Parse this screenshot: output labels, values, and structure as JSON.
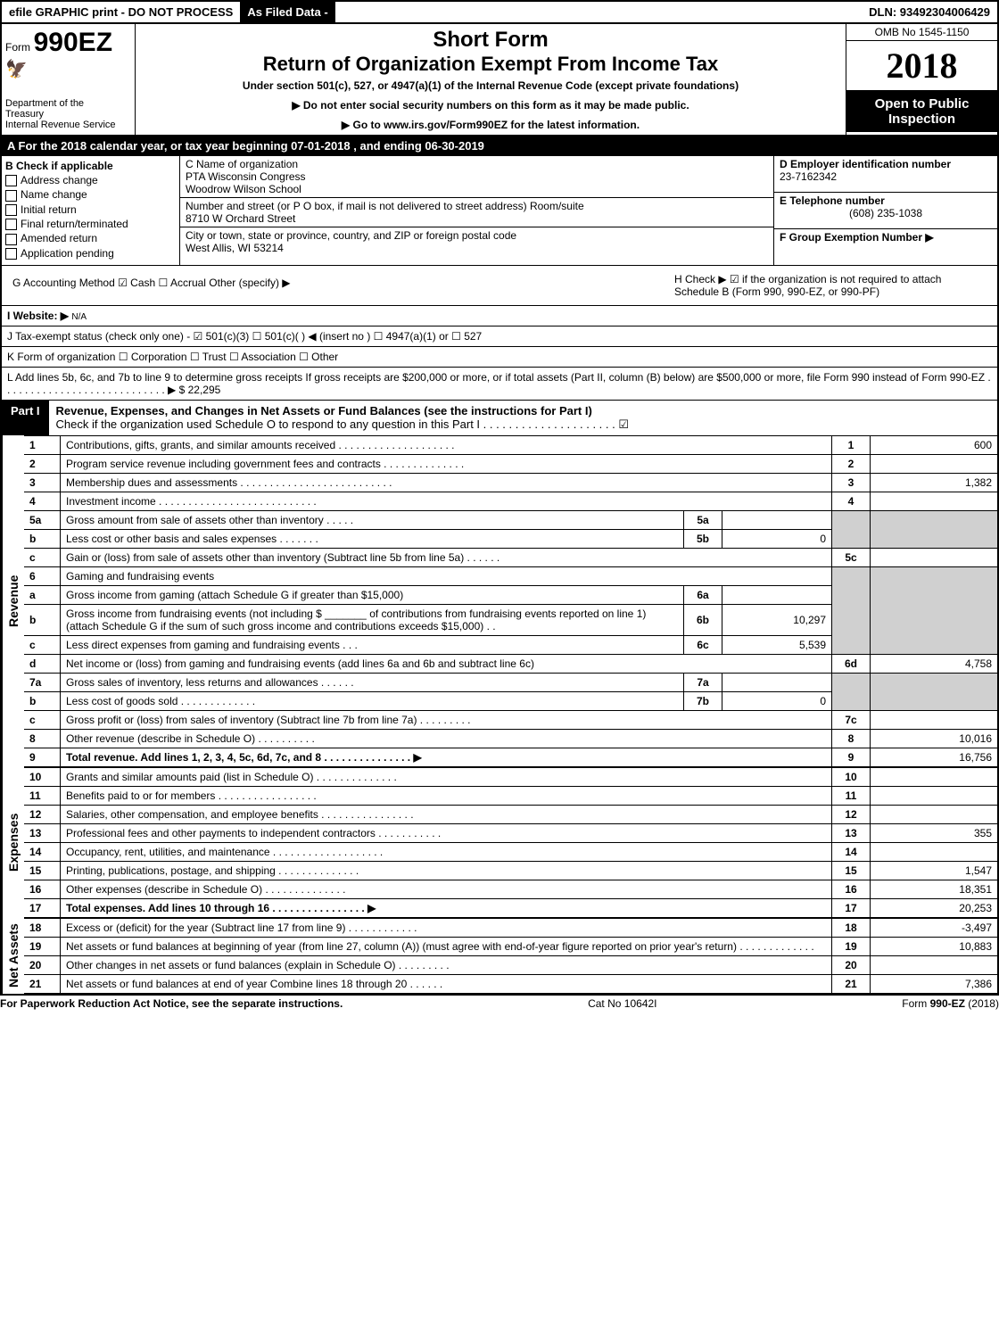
{
  "top_bar": {
    "efile": "efile GRAPHIC print - DO NOT PROCESS",
    "asfiled": "As Filed Data -",
    "dln": "DLN: 93492304006429"
  },
  "header": {
    "form_prefix": "Form",
    "form_no": "990EZ",
    "short": "Short Form",
    "title": "Return of Organization Exempt From Income Tax",
    "sub": "Under section 501(c), 527, or 4947(a)(1) of the Internal Revenue Code (except private foundations)",
    "sub2": "▶ Do not enter social security numbers on this form as it may be made public.",
    "sub3": "▶ Go to www.irs.gov/Form990EZ for the latest information.",
    "dept1": "Department of the",
    "dept2": "Treasury",
    "dept3": "Internal Revenue Service",
    "omb": "OMB No 1545-1150",
    "year": "2018",
    "open": "Open to Public Inspection"
  },
  "row_a": "A  For the 2018 calendar year, or tax year beginning 07-01-2018         , and ending 06-30-2019",
  "col_b": {
    "title": "B Check if applicable",
    "items": [
      "Address change",
      "Name change",
      "Initial return",
      "Final return/terminated",
      "Amended return",
      "Application pending"
    ]
  },
  "col_c": {
    "c_label": "C Name of organization",
    "name1": "PTA Wisconsin Congress",
    "name2": "Woodrow Wilson School",
    "addr_label": "Number and street (or P O  box, if mail is not delivered to street address)  Room/suite",
    "addr": "8710 W Orchard Street",
    "city_label": "City or town, state or province, country, and ZIP or foreign postal code",
    "city": "West Allis, WI  53214"
  },
  "col_def": {
    "d_label": "D Employer identification number",
    "d_val": "23-7162342",
    "e_label": "E Telephone number",
    "e_val": "(608) 235-1038",
    "f_label": "F Group Exemption Number   ▶"
  },
  "gh": {
    "g_label": "G Accounting Method    ☑ Cash   ☐ Accrual   Other (specify) ▶",
    "h_label": "H   Check ▶  ☑ if the organization is not required to attach Schedule B (Form 990, 990-EZ, or 990-PF)",
    "i_label": "I Website: ▶",
    "i_val": "N/A",
    "j_label": "J Tax-exempt status (check only one) - ☑ 501(c)(3)   ☐ 501(c)(  ) ◀ (insert no )  ☐ 4947(a)(1) or  ☐ 527",
    "k_label": "K Form of organization     ☐ Corporation   ☐ Trust   ☐ Association   ☐ Other",
    "l_label": "L Add lines 5b, 6c, and 7b to line 9 to determine gross receipts  If gross receipts are $200,000 or more, or if total assets (Part II, column (B) below) are $500,000 or more, file Form 990 instead of Form 990-EZ  . . . . . . . . . . . . . . . . . . . . . . . . . . . .  ▶ $ 22,295"
  },
  "part1": {
    "num": "Part I",
    "title": "Revenue, Expenses, and Changes in Net Assets or Fund Balances (see the instructions for Part I)",
    "sub": "Check if the organization used Schedule O to respond to any question in this Part I . . . . . . . . . . . . . . . . . . . . .  ☑"
  },
  "revenue_label": "Revenue",
  "expenses_label": "Expenses",
  "netassets_label": "Net Assets",
  "lines": {
    "l1": {
      "n": "1",
      "desc": "Contributions, gifts, grants, and similar amounts received . . . . . . . . . . . . . . . . . . . .",
      "rn": "1",
      "v": "600"
    },
    "l2": {
      "n": "2",
      "desc": "Program service revenue including government fees and contracts . . . . . . . . . . . . . .",
      "rn": "2",
      "v": ""
    },
    "l3": {
      "n": "3",
      "desc": "Membership dues and assessments . . . . . . . . . . . . . . . . . . . . . . . . . .",
      "rn": "3",
      "v": "1,382"
    },
    "l4": {
      "n": "4",
      "desc": "Investment income . . . . . . . . . . . . . . . . . . . . . . . . . . .",
      "rn": "4",
      "v": ""
    },
    "l5a": {
      "n": "5a",
      "desc": "Gross amount from sale of assets other than inventory . . . . .",
      "sn": "5a",
      "sv": ""
    },
    "l5b": {
      "n": "b",
      "desc": "Less  cost or other basis and sales expenses . . . . . . .",
      "sn": "5b",
      "sv": "0"
    },
    "l5c": {
      "n": "c",
      "desc": "Gain or (loss) from sale of assets other than inventory (Subtract line 5b from line 5a) . . . . . .",
      "rn": "5c",
      "v": ""
    },
    "l6": {
      "n": "6",
      "desc": "Gaming and fundraising events"
    },
    "l6a": {
      "n": "a",
      "desc": "Gross income from gaming (attach Schedule G if greater than $15,000)",
      "sn": "6a",
      "sv": ""
    },
    "l6b": {
      "n": "b",
      "desc": "Gross income from fundraising events (not including $ _______ of contributions from fundraising events reported on line 1) (attach Schedule G if the sum of such gross income and contributions exceeds $15,000)    . .",
      "sn": "6b",
      "sv": "10,297"
    },
    "l6c": {
      "n": "c",
      "desc": "Less  direct expenses from gaming and fundraising events     . . .",
      "sn": "6c",
      "sv": "5,539"
    },
    "l6d": {
      "n": "d",
      "desc": "Net income or (loss) from gaming and fundraising events (add lines 6a and 6b and subtract line 6c)",
      "rn": "6d",
      "v": "4,758"
    },
    "l7a": {
      "n": "7a",
      "desc": "Gross sales of inventory, less returns and allowances . . . . . .",
      "sn": "7a",
      "sv": ""
    },
    "l7b": {
      "n": "b",
      "desc": "Less  cost of goods sold           . . . . . . . . . . . . .",
      "sn": "7b",
      "sv": "0"
    },
    "l7c": {
      "n": "c",
      "desc": "Gross profit or (loss) from sales of inventory (Subtract line 7b from line 7a) . . . . . . . . .",
      "rn": "7c",
      "v": ""
    },
    "l8": {
      "n": "8",
      "desc": "Other revenue (describe in Schedule O)                         . . . . . . . . . .",
      "rn": "8",
      "v": "10,016"
    },
    "l9": {
      "n": "9",
      "desc": "Total revenue. Add lines 1, 2, 3, 4, 5c, 6d, 7c, and 8 . . . . . . . . . . . . . . .   ▶",
      "rn": "9",
      "v": "16,756"
    },
    "l10": {
      "n": "10",
      "desc": "Grants and similar amounts paid (list in Schedule O)           . . . . . . . . . . . . . .",
      "rn": "10",
      "v": ""
    },
    "l11": {
      "n": "11",
      "desc": "Benefits paid to or for members                   . . . . . . . . . . . . . . . . .",
      "rn": "11",
      "v": ""
    },
    "l12": {
      "n": "12",
      "desc": "Salaries, other compensation, and employee benefits . . . . . . . . . . . . . . . .",
      "rn": "12",
      "v": ""
    },
    "l13": {
      "n": "13",
      "desc": "Professional fees and other payments to independent contractors . . . . . . . . . . .",
      "rn": "13",
      "v": "355"
    },
    "l14": {
      "n": "14",
      "desc": "Occupancy, rent, utilities, and maintenance . . . . . . . . . . . . . . . . . . .",
      "rn": "14",
      "v": ""
    },
    "l15": {
      "n": "15",
      "desc": "Printing, publications, postage, and shipping              . . . . . . . . . . . . . .",
      "rn": "15",
      "v": "1,547"
    },
    "l16": {
      "n": "16",
      "desc": "Other expenses (describe in Schedule O)                  . . . . . . . . . . . . . .",
      "rn": "16",
      "v": "18,351"
    },
    "l17": {
      "n": "17",
      "desc": "Total expenses. Add lines 10 through 16        . . . . . . . . . . . . . . . .   ▶",
      "rn": "17",
      "v": "20,253"
    },
    "l18": {
      "n": "18",
      "desc": "Excess or (deficit) for the year (Subtract line 17 from line 9)      . . . . . . . . . . . .",
      "rn": "18",
      "v": "-3,497"
    },
    "l19": {
      "n": "19",
      "desc": "Net assets or fund balances at beginning of year (from line 27, column (A)) (must agree with end-of-year figure reported on prior year's return)              . . . . . . . . . . . . .",
      "rn": "19",
      "v": "10,883"
    },
    "l20": {
      "n": "20",
      "desc": "Other changes in net assets or fund balances (explain in Schedule O)     . . . . . . . . .",
      "rn": "20",
      "v": ""
    },
    "l21": {
      "n": "21",
      "desc": "Net assets or fund balances at end of year  Combine lines 18 through 20          . . . . . .",
      "rn": "21",
      "v": "7,386"
    }
  },
  "footer": {
    "left": "For Paperwork Reduction Act Notice, see the separate instructions.",
    "center": "Cat No  10642I",
    "right": "Form 990-EZ (2018)"
  }
}
